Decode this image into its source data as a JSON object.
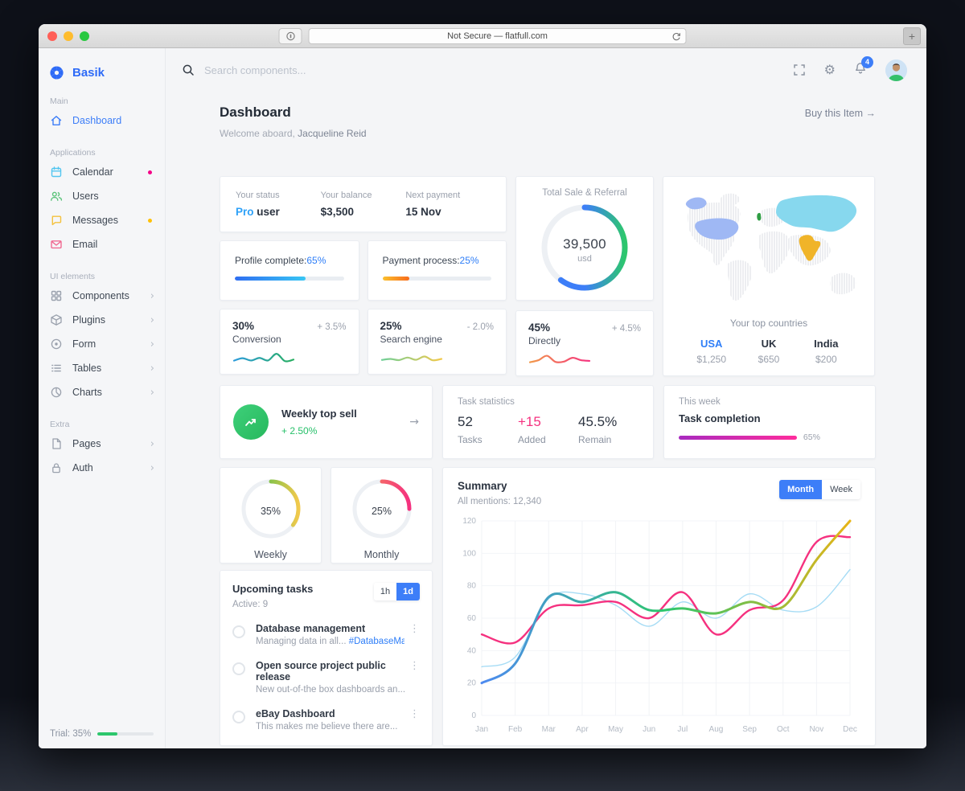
{
  "browser": {
    "url_text": "Not Secure — flatfull.com",
    "new_tab_label": "+"
  },
  "sidebar": {
    "brand": "Basik",
    "sections": [
      {
        "title": "Main",
        "items": [
          {
            "label": "Dashboard"
          }
        ]
      },
      {
        "title": "Applications",
        "items": [
          {
            "label": "Calendar"
          },
          {
            "label": "Users"
          },
          {
            "label": "Messages"
          },
          {
            "label": "Email"
          }
        ]
      },
      {
        "title": "UI elements",
        "items": [
          {
            "label": "Components"
          },
          {
            "label": "Plugins"
          },
          {
            "label": "Form"
          },
          {
            "label": "Tables"
          },
          {
            "label": "Charts"
          }
        ]
      },
      {
        "title": "Extra",
        "items": [
          {
            "label": "Pages"
          },
          {
            "label": "Auth"
          }
        ]
      }
    ],
    "trial": {
      "label": "Trial: 35%",
      "percent": 35
    }
  },
  "topbar": {
    "search_placeholder": "Search components...",
    "notification_count": "4"
  },
  "page_header": {
    "title": "Dashboard",
    "welcome_prefix": "Welcome aboard, ",
    "welcome_name": "Jacqueline Reid",
    "buy_link": "Buy this Item →"
  },
  "status_card": {
    "items": [
      {
        "label": "Your status",
        "accent": "Pro",
        "value": " user"
      },
      {
        "label": "Your balance",
        "value": "$3,500"
      },
      {
        "label": "Next payment",
        "value": "15 Nov"
      }
    ]
  },
  "progress_cards": [
    {
      "label": "Profile complete:",
      "value": "65%",
      "percent": 65
    },
    {
      "label": "Payment process:",
      "value": "25%",
      "percent": 25
    }
  ],
  "spark_cards": [
    {
      "percent": "30%",
      "label": "Conversion",
      "delta": "+ 3.5%"
    },
    {
      "percent": "25%",
      "label": "Search engine",
      "delta": "- 2.0%"
    },
    {
      "percent": "45%",
      "label": "Directly",
      "delta": "+ 4.5%"
    }
  ],
  "total_sale": {
    "title": "Total Sale & Referral",
    "value": "39,500",
    "unit": "usd"
  },
  "map_card": {
    "title": "Your top countries",
    "countries": [
      {
        "name": "USA",
        "value": "$1,250"
      },
      {
        "name": "UK",
        "value": "$650"
      },
      {
        "name": "India",
        "value": "$200"
      }
    ]
  },
  "weekly_top_sell": {
    "title": "Weekly top sell",
    "delta": "+ 2.50%",
    "arrow": "→"
  },
  "task_stats": {
    "title": "Task statistics",
    "items": [
      {
        "value": "52",
        "label": "Tasks"
      },
      {
        "value": "+15",
        "label": "Added"
      },
      {
        "value": "45.5%",
        "label": "Remain"
      }
    ]
  },
  "this_week": {
    "label": "This week",
    "title": "Task completion",
    "percent_label": "65%",
    "percent": 65
  },
  "gauges": [
    {
      "value": "35%",
      "label": "Weekly",
      "percent": 35
    },
    {
      "value": "25%",
      "label": "Monthly",
      "percent": 25
    }
  ],
  "tasks": {
    "title": "Upcoming tasks",
    "subtitle": "Active: 9",
    "toggle": [
      "1h",
      "1d"
    ],
    "items": [
      {
        "title": "Database management",
        "desc": "Managing data in all... ",
        "tag": "#DatabaseMan"
      },
      {
        "title": "Open source project public release",
        "desc": "New out-of-the box dashboards an...",
        "tag": ""
      },
      {
        "title": "eBay Dashboard",
        "desc": "This makes me believe there are...",
        "tag": ""
      }
    ]
  },
  "summary": {
    "title": "Summary",
    "subtitle": "All mentions: 12,340",
    "toggle": [
      "Month",
      "Week"
    ]
  },
  "chart_data": [
    {
      "id": "summary-mentions",
      "type": "line",
      "title": "Summary",
      "subtitle": "All mentions: 12,340",
      "categories": [
        "Jan",
        "Feb",
        "Mar",
        "Apr",
        "May",
        "Jun",
        "Jul",
        "Aug",
        "Sep",
        "Oct",
        "Nov",
        "Dec"
      ],
      "ylim": [
        0,
        120
      ],
      "yticks": [
        0,
        20,
        40,
        60,
        80,
        100,
        120
      ],
      "grid": true,
      "legend": "none",
      "series": [
        {
          "name": "mentions-trend",
          "style": "gradient",
          "colors": [
            "#4d8af0",
            "#2dc76d",
            "#e7b416"
          ],
          "width": 3,
          "values": [
            20,
            32,
            73,
            70,
            76,
            65,
            66,
            63,
            70,
            67,
            96,
            120
          ]
        },
        {
          "name": "mentions-secondary",
          "colors": [
            "#f5317f"
          ],
          "width": 2.4,
          "values": [
            50,
            45,
            66,
            68,
            70,
            60,
            76,
            50,
            65,
            71,
            107,
            110
          ]
        },
        {
          "name": "mentions-light",
          "colors": [
            "#a6dcf5"
          ],
          "width": 1.4,
          "values": [
            30,
            36,
            72,
            75,
            68,
            55,
            70,
            60,
            75,
            65,
            67,
            90
          ]
        }
      ]
    },
    {
      "id": "total-sale-donut",
      "type": "donut",
      "label": "Total Sale & Referral",
      "value": 39500,
      "unit": "usd",
      "percent": 60,
      "colors": [
        "#3d7ef8",
        "#3d7ef8",
        "#2dc76d"
      ]
    },
    {
      "id": "weekly-gauge",
      "type": "donut",
      "label": "Weekly",
      "percent": 35,
      "colors": [
        "#2dc76d",
        "#8bc34a",
        "#f2c94c"
      ]
    },
    {
      "id": "monthly-gauge",
      "type": "donut",
      "label": "Monthly",
      "percent": 25,
      "colors": [
        "#f7a325",
        "#f5636b",
        "#f5317f"
      ]
    },
    {
      "id": "conversion-spark",
      "type": "line",
      "label": "Conversion",
      "colors": [
        "#2d9cdb",
        "#27ae60"
      ],
      "values": [
        3,
        4.4,
        3.1,
        4.6,
        3.1,
        7,
        2.7,
        3.6
      ]
    },
    {
      "id": "search-engine-spark",
      "type": "line",
      "label": "Search engine",
      "colors": [
        "#6fcf97",
        "#f2c94c"
      ],
      "values": [
        3.4,
        4,
        3.3,
        4.8,
        3.5,
        5.4,
        3.2,
        4
      ]
    },
    {
      "id": "directly-spark",
      "type": "line",
      "label": "Directly",
      "colors": [
        "#f2994a",
        "#f5317f"
      ],
      "values": [
        3,
        4.2,
        6.8,
        3.2,
        3.4,
        5.6,
        4.2,
        3.8
      ]
    },
    {
      "id": "profile-progress",
      "type": "bar",
      "label": "Profile complete",
      "percent": 65
    },
    {
      "id": "payment-progress",
      "type": "bar",
      "label": "Payment process",
      "percent": 25
    },
    {
      "id": "task-completion-progress",
      "type": "bar",
      "label": "Task completion",
      "percent": 65
    },
    {
      "id": "trial-progress",
      "type": "bar",
      "label": "Trial",
      "percent": 35
    }
  ]
}
